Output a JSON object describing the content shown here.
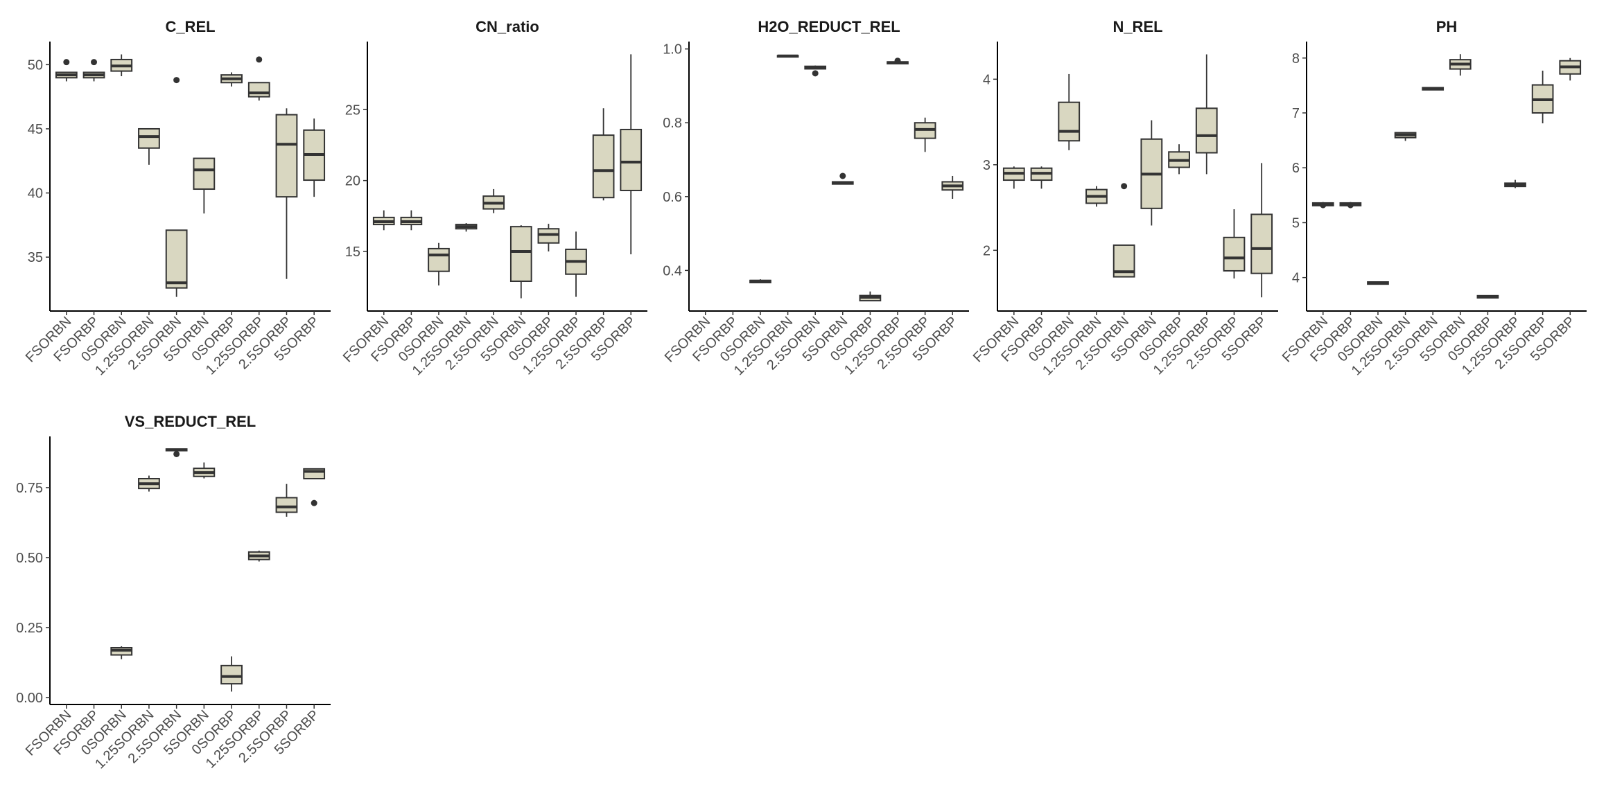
{
  "chart_data": {
    "type": "boxplot",
    "style": {
      "box_fill": "#d9d7c1",
      "line_color": "#333333",
      "tick_text_color": "#4d4d4d"
    },
    "categories": [
      "FSORBN",
      "FSORBP",
      "0SORBN",
      "1.25SORBN",
      "2.5SORBN",
      "5SORBN",
      "0SORBP",
      "1.25SORBP",
      "2.5SORBP",
      "5SORBP"
    ],
    "panels": [
      {
        "title": "C_REL",
        "ylim": [
          30.8,
          51.8
        ],
        "yticks": [
          35,
          40,
          45,
          50
        ],
        "ytick_labels": [
          "35",
          "40",
          "45",
          "50"
        ],
        "boxes": [
          {
            "lo": 48.7,
            "q1": 48.98,
            "med": 49.2,
            "q3": 49.4,
            "hi": 49.4,
            "outliers": [
              50.2
            ]
          },
          {
            "lo": 48.7,
            "q1": 48.98,
            "med": 49.2,
            "q3": 49.4,
            "hi": 49.4,
            "outliers": [
              50.2
            ]
          },
          {
            "lo": 49.1,
            "q1": 49.5,
            "med": 49.9,
            "q3": 50.4,
            "hi": 50.8,
            "outliers": []
          },
          {
            "lo": 42.2,
            "q1": 43.5,
            "med": 44.4,
            "q3": 45.0,
            "hi": 45.0,
            "outliers": []
          },
          {
            "lo": 31.9,
            "q1": 32.6,
            "med": 33.0,
            "q3": 37.1,
            "hi": 37.1,
            "outliers": [
              48.8
            ]
          },
          {
            "lo": 38.4,
            "q1": 40.3,
            "med": 41.8,
            "q3": 42.7,
            "hi": 42.7,
            "outliers": []
          },
          {
            "lo": 48.3,
            "q1": 48.6,
            "med": 48.9,
            "q3": 49.2,
            "hi": 49.4,
            "outliers": []
          },
          {
            "lo": 47.2,
            "q1": 47.5,
            "med": 47.8,
            "q3": 48.6,
            "hi": 48.6,
            "outliers": [
              50.4
            ]
          },
          {
            "lo": 33.3,
            "q1": 39.7,
            "med": 43.8,
            "q3": 46.1,
            "hi": 46.6,
            "outliers": []
          },
          {
            "lo": 39.7,
            "q1": 41.0,
            "med": 43.0,
            "q3": 44.9,
            "hi": 45.8,
            "outliers": []
          }
        ]
      },
      {
        "title": "CN_ratio",
        "ylim": [
          10.8,
          29.8
        ],
        "yticks": [
          15,
          20,
          25
        ],
        "ytick_labels": [
          "15",
          "20",
          "25"
        ],
        "boxes": [
          {
            "lo": 16.5,
            "q1": 16.9,
            "med": 17.1,
            "q3": 17.4,
            "hi": 17.9,
            "outliers": []
          },
          {
            "lo": 16.5,
            "q1": 16.9,
            "med": 17.1,
            "q3": 17.4,
            "hi": 17.9,
            "outliers": []
          },
          {
            "lo": 12.6,
            "q1": 13.6,
            "med": 14.75,
            "q3": 15.2,
            "hi": 15.6,
            "outliers": []
          },
          {
            "lo": 16.4,
            "q1": 16.6,
            "med": 16.75,
            "q3": 16.9,
            "hi": 17.0,
            "outliers": []
          },
          {
            "lo": 17.7,
            "q1": 18.0,
            "med": 18.4,
            "q3": 18.9,
            "hi": 19.4,
            "outliers": []
          },
          {
            "lo": 11.7,
            "q1": 12.9,
            "med": 15.0,
            "q3": 16.75,
            "hi": 16.85,
            "outliers": []
          },
          {
            "lo": 15.0,
            "q1": 15.6,
            "med": 16.2,
            "q3": 16.6,
            "hi": 16.95,
            "outliers": []
          },
          {
            "lo": 11.8,
            "q1": 13.4,
            "med": 14.3,
            "q3": 15.15,
            "hi": 16.4,
            "outliers": []
          },
          {
            "lo": 18.6,
            "q1": 18.8,
            "med": 20.7,
            "q3": 23.2,
            "hi": 25.1,
            "outliers": []
          },
          {
            "lo": 14.8,
            "q1": 19.3,
            "med": 21.3,
            "q3": 23.6,
            "hi": 28.9,
            "outliers": []
          }
        ]
      },
      {
        "title": "H2O_REDUCT_REL",
        "ylim": [
          0.29,
          1.02
        ],
        "yticks": [
          0.4,
          0.6,
          0.8,
          1.0
        ],
        "ytick_labels": [
          "0.4",
          "0.6",
          "0.8",
          "1.0"
        ],
        "boxes": [
          null,
          null,
          {
            "lo": 0.367,
            "q1": 0.367,
            "med": 0.371,
            "q3": 0.373,
            "hi": 0.376,
            "outliers": []
          },
          {
            "lo": 0.98,
            "q1": 0.98,
            "med": 0.981,
            "q3": 0.982,
            "hi": 0.982,
            "outliers": []
          },
          {
            "lo": 0.946,
            "q1": 0.946,
            "med": 0.95,
            "q3": 0.953,
            "hi": 0.955,
            "outliers": [
              0.934
            ]
          },
          {
            "lo": 0.634,
            "q1": 0.634,
            "med": 0.637,
            "q3": 0.64,
            "hi": 0.64,
            "outliers": [
              0.656
            ]
          },
          {
            "lo": 0.318,
            "q1": 0.318,
            "med": 0.327,
            "q3": 0.332,
            "hi": 0.343,
            "outliers": []
          },
          {
            "lo": 0.96,
            "q1": 0.96,
            "med": 0.963,
            "q3": 0.965,
            "hi": 0.965,
            "outliers": [
              0.968
            ]
          },
          {
            "lo": 0.721,
            "q1": 0.758,
            "med": 0.782,
            "q3": 0.8,
            "hi": 0.814,
            "outliers": []
          },
          {
            "lo": 0.594,
            "q1": 0.618,
            "med": 0.629,
            "q3": 0.64,
            "hi": 0.656,
            "outliers": []
          }
        ]
      },
      {
        "title": "N_REL",
        "ylim": [
          1.29,
          4.44
        ],
        "yticks": [
          2,
          3,
          4
        ],
        "ytick_labels": [
          "2",
          "3",
          "4"
        ],
        "boxes": [
          {
            "lo": 2.72,
            "q1": 2.82,
            "med": 2.9,
            "q3": 2.96,
            "hi": 2.98,
            "outliers": []
          },
          {
            "lo": 2.72,
            "q1": 2.82,
            "med": 2.9,
            "q3": 2.96,
            "hi": 2.98,
            "outliers": []
          },
          {
            "lo": 3.17,
            "q1": 3.28,
            "med": 3.39,
            "q3": 3.73,
            "hi": 4.06,
            "outliers": []
          },
          {
            "lo": 2.51,
            "q1": 2.55,
            "med": 2.63,
            "q3": 2.71,
            "hi": 2.75,
            "outliers": []
          },
          {
            "lo": 1.69,
            "q1": 1.69,
            "med": 1.75,
            "q3": 2.06,
            "hi": 2.06,
            "outliers": [
              2.75
            ]
          },
          {
            "lo": 2.29,
            "q1": 2.49,
            "med": 2.89,
            "q3": 3.3,
            "hi": 3.52,
            "outliers": []
          },
          {
            "lo": 2.89,
            "q1": 2.97,
            "med": 3.05,
            "q3": 3.15,
            "hi": 3.24,
            "outliers": []
          },
          {
            "lo": 2.89,
            "q1": 3.14,
            "med": 3.34,
            "q3": 3.66,
            "hi": 4.29,
            "outliers": []
          },
          {
            "lo": 1.67,
            "q1": 1.76,
            "med": 1.91,
            "q3": 2.15,
            "hi": 2.48,
            "outliers": []
          },
          {
            "lo": 1.45,
            "q1": 1.73,
            "med": 2.02,
            "q3": 2.42,
            "hi": 3.02,
            "outliers": []
          }
        ]
      },
      {
        "title": "PH",
        "ylim": [
          3.39,
          8.3
        ],
        "yticks": [
          4,
          5,
          6,
          7,
          8
        ],
        "ytick_labels": [
          "4",
          "5",
          "6",
          "7",
          "8"
        ],
        "boxes": [
          {
            "lo": 5.31,
            "q1": 5.31,
            "med": 5.34,
            "q3": 5.36,
            "hi": 5.36,
            "outliers": [
              5.32
            ]
          },
          {
            "lo": 5.31,
            "q1": 5.31,
            "med": 5.34,
            "q3": 5.36,
            "hi": 5.36,
            "outliers": [
              5.32
            ]
          },
          {
            "lo": 3.87,
            "q1": 3.88,
            "med": 3.9,
            "q3": 3.92,
            "hi": 3.92,
            "outliers": []
          },
          {
            "lo": 6.49,
            "q1": 6.55,
            "med": 6.6,
            "q3": 6.64,
            "hi": 6.64,
            "outliers": []
          },
          {
            "lo": 7.41,
            "q1": 7.42,
            "med": 7.44,
            "q3": 7.46,
            "hi": 7.46,
            "outliers": []
          },
          {
            "lo": 7.68,
            "q1": 7.8,
            "med": 7.89,
            "q3": 7.97,
            "hi": 8.07,
            "outliers": []
          },
          {
            "lo": 3.63,
            "q1": 3.63,
            "med": 3.65,
            "q3": 3.67,
            "hi": 3.67,
            "outliers": []
          },
          {
            "lo": 5.63,
            "q1": 5.66,
            "med": 5.69,
            "q3": 5.72,
            "hi": 5.78,
            "outliers": []
          },
          {
            "lo": 6.81,
            "q1": 7.0,
            "med": 7.24,
            "q3": 7.51,
            "hi": 7.77,
            "outliers": []
          },
          {
            "lo": 7.59,
            "q1": 7.71,
            "med": 7.84,
            "q3": 7.95,
            "hi": 8.0,
            "outliers": []
          }
        ]
      },
      {
        "title": "VS_REDUCT_REL",
        "ylim": [
          -0.025,
          0.933
        ],
        "yticks": [
          0.0,
          0.25,
          0.5,
          0.75
        ],
        "ytick_labels": [
          "0.00",
          "0.25",
          "0.50",
          "0.75"
        ],
        "boxes": [
          null,
          null,
          {
            "lo": 0.137,
            "q1": 0.152,
            "med": 0.169,
            "q3": 0.178,
            "hi": 0.183,
            "outliers": []
          },
          {
            "lo": 0.736,
            "q1": 0.747,
            "med": 0.764,
            "q3": 0.782,
            "hi": 0.793,
            "outliers": []
          },
          {
            "lo": 0.882,
            "q1": 0.882,
            "med": 0.885,
            "q3": 0.888,
            "hi": 0.888,
            "outliers": [
              0.87
            ]
          },
          {
            "lo": 0.783,
            "q1": 0.79,
            "med": 0.804,
            "q3": 0.819,
            "hi": 0.84,
            "outliers": []
          },
          {
            "lo": 0.021,
            "q1": 0.049,
            "med": 0.075,
            "q3": 0.114,
            "hi": 0.147,
            "outliers": []
          },
          {
            "lo": 0.486,
            "q1": 0.493,
            "med": 0.506,
            "q3": 0.52,
            "hi": 0.525,
            "outliers": []
          },
          {
            "lo": 0.646,
            "q1": 0.662,
            "med": 0.681,
            "q3": 0.714,
            "hi": 0.763,
            "outliers": []
          },
          {
            "lo": 0.782,
            "q1": 0.782,
            "med": 0.808,
            "q3": 0.817,
            "hi": 0.817,
            "outliers": [
              0.695
            ]
          }
        ]
      }
    ]
  }
}
